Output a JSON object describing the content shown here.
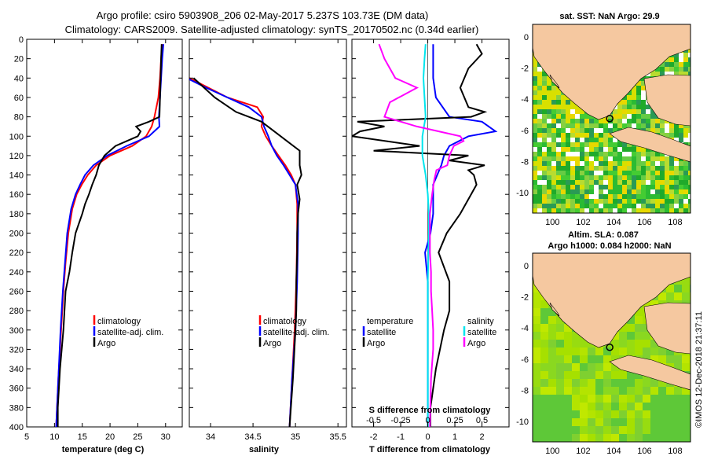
{
  "title": {
    "line1": "Argo profile: csiro 5903908_206 02-May-2017 5.237S 103.73E (DM data)",
    "line2": "Climatology: CARS2009. Satellite-adjusted climatology: synTS_20170502.nc (0.34d earlier)"
  },
  "credit": "©IMOS 12-Dec-2018 21:37:11",
  "colors": {
    "climatology": "#ff0000",
    "satellite": "#0000ff",
    "argo": "#000000",
    "sal_satellite": "#00e5ee",
    "sal_argo": "#ff00ff",
    "land": "#f5c8a0",
    "sea_green": "#33cc33",
    "sea_yellow": "#d8e000"
  },
  "chart_data": [
    {
      "type": "line",
      "panel": "temperature",
      "xlabel": "temperature (deg C)",
      "ylabel": "",
      "xlim": [
        5,
        33
      ],
      "ylim": [
        400,
        0
      ],
      "xticks": [
        "5",
        "10",
        "15",
        "20",
        "25",
        "30"
      ],
      "xtick_values": [
        5,
        10,
        15,
        20,
        25,
        30
      ],
      "yticks": [
        "0",
        "20",
        "40",
        "60",
        "80",
        "100",
        "120",
        "140",
        "160",
        "180",
        "200",
        "220",
        "240",
        "260",
        "280",
        "300",
        "320",
        "340",
        "360",
        "380",
        "400"
      ],
      "ytick_values": [
        0,
        20,
        40,
        60,
        80,
        100,
        120,
        140,
        160,
        180,
        200,
        220,
        240,
        260,
        280,
        300,
        320,
        340,
        360,
        380,
        400
      ],
      "legend": [
        "climatology",
        "satellite-adj. clim.",
        "Argo"
      ],
      "series": [
        {
          "name": "climatology",
          "depth": [
            5,
            20,
            40,
            60,
            80,
            90,
            100,
            110,
            120,
            130,
            140,
            150,
            160,
            175,
            200,
            230,
            260,
            300,
            350,
            400
          ],
          "values": [
            29.4,
            29.2,
            29.0,
            28.7,
            28.0,
            27.5,
            26.5,
            24.0,
            20.0,
            17.5,
            16.0,
            14.9,
            14.0,
            13.2,
            12.5,
            12.0,
            11.6,
            11.2,
            10.7,
            10.3
          ]
        },
        {
          "name": "satellite-adj. clim.",
          "depth": [
            5,
            20,
            40,
            60,
            80,
            90,
            100,
            110,
            120,
            130,
            140,
            150,
            160,
            175,
            200,
            230,
            260,
            300,
            350,
            400
          ],
          "values": [
            29.6,
            29.4,
            29.2,
            29.0,
            28.8,
            28.9,
            27.0,
            23.0,
            19.5,
            17.0,
            15.5,
            14.6,
            13.8,
            13.0,
            12.3,
            11.9,
            11.5,
            11.1,
            10.7,
            10.3
          ]
        },
        {
          "name": "Argo",
          "depth": [
            5,
            20,
            40,
            60,
            80,
            85,
            90,
            95,
            100,
            110,
            120,
            130,
            140,
            150,
            160,
            170,
            180,
            200,
            220,
            240,
            260,
            280,
            300,
            340,
            380,
            400
          ],
          "values": [
            29.3,
            29.2,
            29.1,
            29.0,
            28.9,
            27.0,
            24.7,
            25.5,
            25.0,
            21.0,
            19.0,
            18.0,
            17.5,
            16.8,
            16.2,
            15.5,
            15.0,
            13.8,
            13.2,
            12.7,
            12.0,
            11.8,
            11.6,
            11.0,
            10.6,
            10.6
          ]
        }
      ]
    },
    {
      "type": "line",
      "panel": "salinity",
      "xlabel": "salinity",
      "xlim": [
        33.75,
        35.6
      ],
      "ylim": [
        400,
        0
      ],
      "xticks": [
        "34",
        "34.5",
        "35",
        "35.5"
      ],
      "xtick_values": [
        34,
        34.5,
        35,
        35.5
      ],
      "legend": [
        "climatology",
        "satellite-adj. clim.",
        "Argo"
      ],
      "series": [
        {
          "name": "climatology",
          "depth": [
            40,
            60,
            70,
            80,
            90,
            100,
            110,
            120,
            130,
            140,
            150,
            170,
            200,
            250,
            300,
            350,
            400
          ],
          "values": [
            33.75,
            34.2,
            34.55,
            34.62,
            34.6,
            34.65,
            34.72,
            34.8,
            34.88,
            34.95,
            35.0,
            35.02,
            35.02,
            35.01,
            34.99,
            34.96,
            34.93
          ]
        },
        {
          "name": "satellite-adj. clim.",
          "depth": [
            40,
            50,
            60,
            70,
            80,
            90,
            100,
            110,
            120,
            130,
            140,
            150,
            170,
            200,
            250,
            300,
            350,
            400
          ],
          "values": [
            33.72,
            33.95,
            34.2,
            34.45,
            34.6,
            34.63,
            34.68,
            34.72,
            34.78,
            34.86,
            34.93,
            35.0,
            35.03,
            35.03,
            35.02,
            35.0,
            34.96,
            34.93
          ]
        },
        {
          "name": "Argo",
          "depth": [
            40,
            60,
            75,
            85,
            95,
            105,
            115,
            120,
            130,
            140,
            150,
            165,
            180,
            200,
            220,
            250,
            280,
            300,
            350,
            400
          ],
          "values": [
            33.8,
            34.05,
            34.3,
            34.6,
            34.75,
            34.9,
            35.05,
            35.05,
            35.05,
            35.07,
            35.02,
            35.05,
            35.03,
            35.02,
            35.02,
            35.01,
            35.01,
            35.0,
            34.97,
            34.93
          ]
        }
      ]
    },
    {
      "type": "line",
      "panel": "difference",
      "xlabel": "T difference from climatology",
      "top_label": "S difference from climatology",
      "xlim": [
        -2.8,
        3.0
      ],
      "ylim": [
        400,
        0
      ],
      "xticks": [
        "-2",
        "-1",
        "0",
        "1",
        "2"
      ],
      "xtick_values": [
        -2,
        -1,
        0,
        1,
        2
      ],
      "sal_xticks": [
        "-0.5",
        "-0.25",
        "0",
        "0.25",
        "0.5"
      ],
      "sal_xtick_values": [
        -0.5,
        -0.25,
        0,
        0.25,
        0.5
      ],
      "sal_scale": 4,
      "legend_temperature_title": "temperature",
      "legend_temperature": [
        "satellite",
        "Argo"
      ],
      "legend_salinity_title": "salinity",
      "legend_salinity": [
        "satellite",
        "Argo"
      ],
      "series": [
        {
          "name": "T satellite",
          "kind": "temp",
          "color": "satellite",
          "depth": [
            5,
            20,
            40,
            60,
            80,
            85,
            95,
            100,
            110,
            120,
            130,
            150,
            180,
            200,
            220,
            250,
            300,
            350,
            400
          ],
          "values": [
            0.2,
            0.2,
            0.2,
            0.3,
            0.8,
            2.0,
            2.5,
            1.5,
            0.8,
            0.6,
            0.5,
            0.2,
            0.2,
            0.1,
            -0.1,
            0.0,
            0.0,
            0.0,
            0.0
          ]
        },
        {
          "name": "T Argo",
          "kind": "temp",
          "color": "argo",
          "depth": [
            5,
            15,
            30,
            50,
            70,
            75,
            80,
            85,
            90,
            95,
            100,
            110,
            115,
            120,
            125,
            130,
            135,
            140,
            150,
            160,
            180,
            200,
            220,
            250,
            280,
            300,
            340,
            380,
            400
          ],
          "values": [
            1.8,
            2.0,
            1.5,
            1.2,
            1.5,
            2.1,
            1.6,
            -2.6,
            -1.6,
            -2.5,
            -2.8,
            -0.3,
            -2.0,
            1.5,
            0.8,
            2.1,
            1.5,
            1.7,
            1.8,
            1.6,
            1.2,
            0.7,
            0.4,
            0.8,
            0.8,
            0.6,
            0.3,
            0.1,
            0.1
          ]
        },
        {
          "name": "S satellite",
          "kind": "sal",
          "color": "sal_satellite",
          "depth": [
            5,
            20,
            40,
            60,
            80,
            100,
            120,
            140,
            160,
            180,
            200,
            250,
            300,
            350,
            400
          ],
          "values": [
            -0.02,
            -0.03,
            -0.04,
            -0.03,
            -0.02,
            -0.05,
            -0.05,
            -0.02,
            0.0,
            0.01,
            0.01,
            0.0,
            0.0,
            0.0,
            0.0
          ]
        },
        {
          "name": "S Argo",
          "kind": "sal",
          "color": "sal_argo",
          "depth": [
            5,
            20,
            40,
            50,
            65,
            80,
            90,
            100,
            105,
            110,
            120,
            130,
            135,
            145,
            160,
            180,
            200,
            220,
            240,
            260,
            280,
            300,
            320,
            350,
            400
          ],
          "values": [
            -0.45,
            -0.4,
            -0.3,
            -0.1,
            -0.35,
            -0.4,
            -0.1,
            0.3,
            0.33,
            0.24,
            0.2,
            0.18,
            0.08,
            0.06,
            0.04,
            0.02,
            0.02,
            0.02,
            0.03,
            0.03,
            0.04,
            0.05,
            0.05,
            0.03,
            0.02
          ]
        }
      ]
    },
    {
      "type": "heatmap",
      "panel": "sst_map",
      "title": "sat. SST: NaN Argo: 29.9",
      "xticks": [
        "100",
        "102",
        "104",
        "106",
        "108"
      ],
      "xtick_values": [
        100,
        102,
        104,
        106,
        108
      ],
      "yticks": [
        "0",
        "-2",
        "-4",
        "-6",
        "-8",
        "-10"
      ],
      "ytick_values": [
        0,
        -2,
        -4,
        -6,
        -8,
        -10
      ],
      "xlim": [
        98.7,
        109.0
      ],
      "ylim": [
        -11.3,
        0.8
      ],
      "argo_position": [
        103.73,
        -5.237
      ]
    },
    {
      "type": "heatmap",
      "panel": "sla_map",
      "title_line1": "Altim. SLA: 0.087",
      "title_line2": "Argo h1000: 0.084 h2000: NaN",
      "xticks": [
        "100",
        "102",
        "104",
        "106",
        "108"
      ],
      "xtick_values": [
        100,
        102,
        104,
        106,
        108
      ],
      "yticks": [
        "0",
        "-2",
        "-4",
        "-6",
        "-8",
        "-10"
      ],
      "ytick_values": [
        0,
        -2,
        -4,
        -6,
        -8,
        -10
      ],
      "xlim": [
        98.7,
        109.0
      ],
      "ylim": [
        -11.3,
        0.8
      ],
      "argo_position": [
        103.73,
        -5.237
      ]
    }
  ]
}
